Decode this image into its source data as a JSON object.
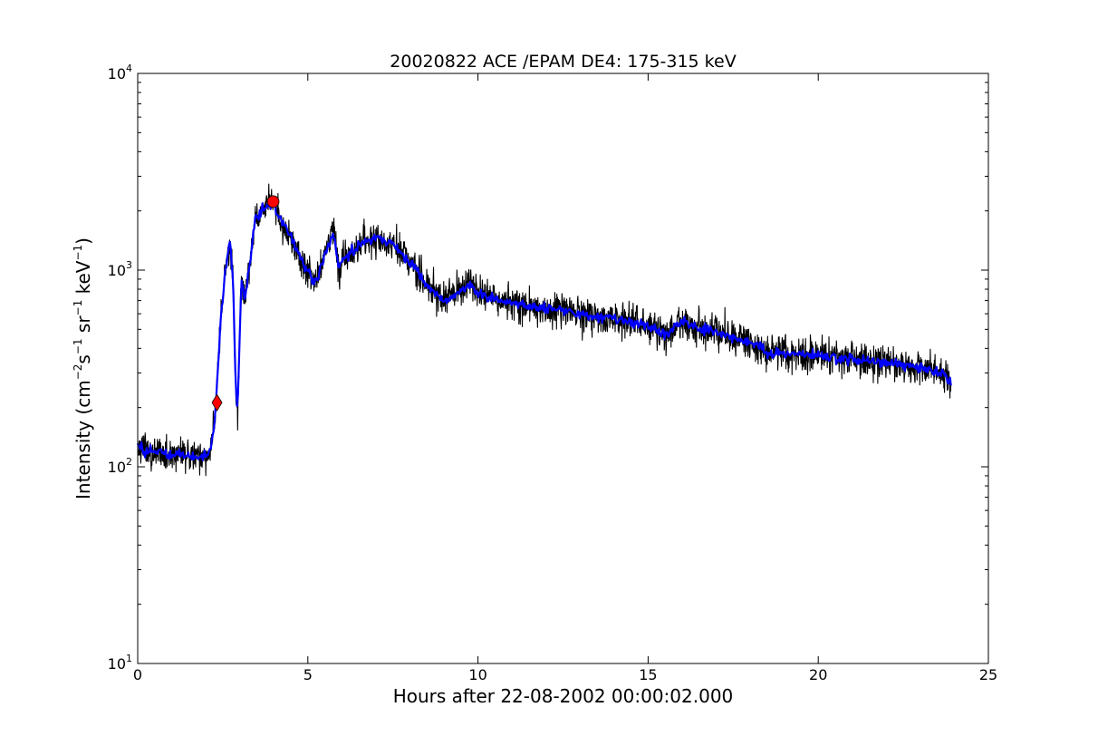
{
  "chart_data": {
    "type": "line",
    "title": "20020822 ACE /EPAM DE4: 175-315 keV",
    "xlabel": "Hours after 22-08-2002 00:00:02.000",
    "ylabel": {
      "prefix": "Intensity (cm",
      "sup1": "−2",
      "mid1": "s",
      "sup2": "−1",
      "mid2": " sr",
      "sup3": "−1",
      "mid3": " keV",
      "sup4": "−1",
      "suffix": ")"
    },
    "xlim": [
      0,
      25
    ],
    "ylim": [
      10,
      10000
    ],
    "yscale": "log",
    "grid": false,
    "x_ticks": [
      "0",
      "5",
      "10",
      "15",
      "20",
      "25"
    ],
    "y_ticks": [
      {
        "base": "10",
        "exp": "1",
        "value": 10
      },
      {
        "base": "10",
        "exp": "2",
        "value": 100
      },
      {
        "base": "10",
        "exp": "3",
        "value": 1000
      },
      {
        "base": "10",
        "exp": "4",
        "value": 10000
      }
    ],
    "series": [
      {
        "color": "#000000",
        "style": "raw-noisy",
        "x": [
          0.0,
          0.3,
          0.6,
          0.9,
          1.2,
          1.5,
          1.8,
          2.1,
          2.25,
          2.35,
          2.45,
          2.55,
          2.65,
          2.72,
          2.8,
          2.87,
          2.93,
          2.98,
          3.05,
          3.15,
          3.3,
          3.45,
          3.6,
          3.75,
          3.9,
          4.0,
          4.2,
          4.5,
          4.8,
          5.0,
          5.2,
          5.4,
          5.6,
          5.75,
          5.9,
          6.1,
          6.5,
          7.0,
          7.5,
          7.8,
          8.2,
          8.6,
          9.0,
          9.3,
          9.6,
          9.8,
          10.0,
          10.5,
          11.0,
          12.0,
          13.0,
          14.0,
          15.0,
          15.5,
          16.0,
          16.5,
          17.0,
          18.0,
          18.5,
          19.0,
          20.0,
          21.0,
          22.0,
          23.0,
          23.6,
          23.9
        ],
        "y": [
          125,
          120,
          118,
          116,
          115,
          114,
          112,
          116,
          160,
          300,
          600,
          900,
          1200,
          1400,
          900,
          300,
          180,
          350,
          900,
          700,
          1100,
          1800,
          2000,
          2100,
          2150,
          2100,
          1800,
          1500,
          1100,
          1000,
          850,
          1050,
          1350,
          1550,
          1050,
          1150,
          1350,
          1450,
          1350,
          1200,
          1000,
          800,
          700,
          750,
          800,
          850,
          750,
          720,
          680,
          640,
          600,
          570,
          520,
          470,
          550,
          500,
          480,
          430,
          380,
          380,
          370,
          350,
          340,
          320,
          300,
          270
        ]
      },
      {
        "color": "#0000ff",
        "style": "smoothed",
        "x": [
          0.0,
          0.3,
          0.6,
          0.9,
          1.2,
          1.5,
          1.8,
          2.1,
          2.25,
          2.35,
          2.45,
          2.55,
          2.65,
          2.72,
          2.8,
          2.87,
          2.93,
          2.98,
          3.05,
          3.15,
          3.3,
          3.45,
          3.6,
          3.75,
          3.9,
          4.0,
          4.2,
          4.5,
          4.8,
          5.0,
          5.2,
          5.4,
          5.6,
          5.75,
          5.9,
          6.1,
          6.5,
          7.0,
          7.5,
          7.8,
          8.2,
          8.6,
          9.0,
          9.3,
          9.6,
          9.8,
          10.0,
          10.5,
          11.0,
          12.0,
          13.0,
          14.0,
          15.0,
          15.5,
          16.0,
          16.5,
          17.0,
          18.0,
          18.5,
          19.0,
          20.0,
          21.0,
          22.0,
          23.0,
          23.6,
          23.9
        ],
        "y": [
          125,
          120,
          118,
          116,
          115,
          114,
          112,
          116,
          160,
          300,
          600,
          900,
          1200,
          1400,
          900,
          300,
          180,
          350,
          900,
          700,
          1100,
          1800,
          2000,
          2100,
          2150,
          2100,
          1800,
          1500,
          1100,
          1000,
          850,
          1050,
          1350,
          1550,
          1050,
          1150,
          1350,
          1450,
          1350,
          1200,
          1000,
          800,
          700,
          750,
          800,
          850,
          750,
          720,
          680,
          640,
          600,
          570,
          520,
          470,
          550,
          500,
          480,
          430,
          380,
          380,
          370,
          350,
          340,
          320,
          300,
          270
        ]
      }
    ],
    "markers": [
      {
        "shape": "diamond",
        "color": "#ff0000",
        "x": 2.33,
        "y": 212
      },
      {
        "shape": "circle",
        "color": "#ff0000",
        "x": 3.98,
        "y": 2230
      }
    ]
  }
}
